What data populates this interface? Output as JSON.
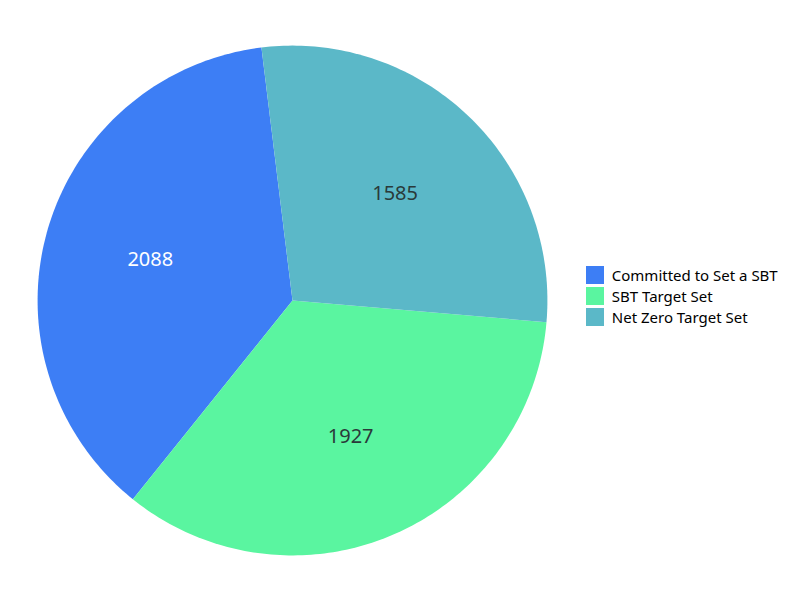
{
  "chart_data": {
    "type": "pie",
    "categories": [
      "Committed to Set a SBT",
      "SBT Target Set",
      "Net Zero Target Set"
    ],
    "values": [
      2088,
      1927,
      1585
    ],
    "colors": [
      "#3d7ef5",
      "#5af5a0",
      "#5bb8c8"
    ],
    "data_labels": true,
    "legend": "right"
  }
}
